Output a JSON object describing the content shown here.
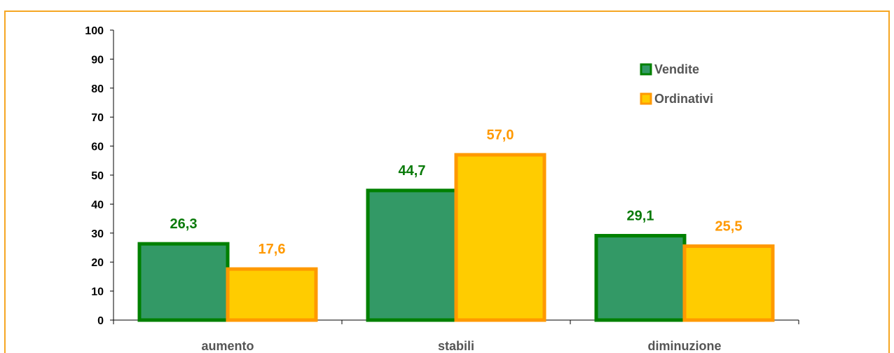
{
  "chart_data": {
    "type": "bar",
    "categories": [
      "aumento",
      "stabili",
      "diminuzione"
    ],
    "series": [
      {
        "name": "Vendite",
        "values": [
          26.3,
          44.7,
          29.1
        ],
        "labels": [
          "26,3",
          "44,7",
          "29,1"
        ],
        "fill": "#339966",
        "stroke": "#008000",
        "label_color": "#0a7a0a"
      },
      {
        "name": "Ordinativi",
        "values": [
          17.6,
          57.0,
          25.5
        ],
        "labels": [
          "17,6",
          "57,0",
          "25,5"
        ],
        "fill": "#ffcc00",
        "stroke": "#ff9900",
        "label_color": "#ff9900"
      }
    ],
    "yticks": [
      "0",
      "10",
      "20",
      "30",
      "40",
      "50",
      "60",
      "70",
      "80",
      "90",
      "100"
    ],
    "ylim": [
      0,
      100
    ],
    "grid": false,
    "legend_position": "top-right",
    "frame_color": "#f5a623"
  }
}
